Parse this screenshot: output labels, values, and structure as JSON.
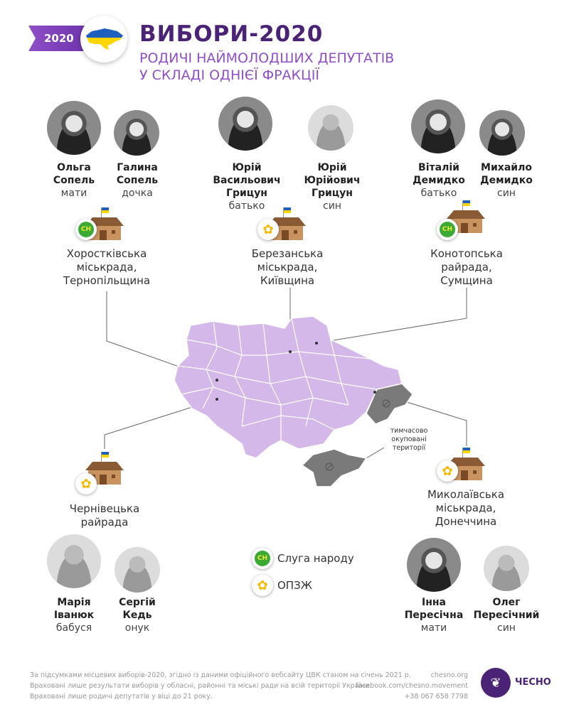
{
  "header": {
    "year_badge": "2020",
    "title": "ВИБОРИ-2020",
    "subtitle_line1": "РОДИЧІ НАЙМОЛОДШИХ ДЕПУТАТІВ",
    "subtitle_line2": "У СКЛАДІ ОДНІЄЇ ФРАКЦІЇ"
  },
  "colors": {
    "brand": "#4a2377",
    "accent": "#8e4fc7",
    "map": "#d4b8ea",
    "occupied": "#7a7a7a",
    "sluha": "#3aaa35",
    "opzzh": "#f5b800"
  },
  "families": [
    {
      "council": [
        "Хоростківська",
        "міськрада,",
        "Тернопільщина"
      ],
      "party": "sluha",
      "members": [
        {
          "name": [
            "Ольга",
            "Сопель"
          ],
          "role": "мати"
        },
        {
          "name": [
            "Галина",
            "Сопель"
          ],
          "role": "дочка"
        }
      ]
    },
    {
      "council": [
        "Березанська",
        "міськрада,",
        "Київщина"
      ],
      "party": "opzzh",
      "members": [
        {
          "name": [
            "Юрій",
            "Васильович",
            "Грицун"
          ],
          "role": "батько"
        },
        {
          "name": [
            "Юрій",
            "Юрійович",
            "Грицун"
          ],
          "role": "син"
        }
      ]
    },
    {
      "council": [
        "Конотопська",
        "райрада,",
        "Сумщина"
      ],
      "party": "sluha",
      "members": [
        {
          "name": [
            "Віталій",
            "Демидко"
          ],
          "role": "батько"
        },
        {
          "name": [
            "Михайло",
            "Демидко"
          ],
          "role": "син"
        }
      ]
    },
    {
      "council": [
        "Чернівецька",
        "райрада"
      ],
      "party": "opzzh",
      "members": [
        {
          "name": [
            "Марія",
            "Іванюк"
          ],
          "role": "бабуся"
        },
        {
          "name": [
            "Сергій",
            "Кедь"
          ],
          "role": "онук"
        }
      ]
    },
    {
      "council": [
        "Миколаївська",
        "міськрада,",
        "Донеччина"
      ],
      "party": "opzzh",
      "members": [
        {
          "name": [
            "Інна",
            "Пересічна"
          ],
          "role": "мати"
        },
        {
          "name": [
            "Олег",
            "Пересічний"
          ],
          "role": "син"
        }
      ]
    }
  ],
  "map": {
    "occupied_label": [
      "тимчасово",
      "окуповані",
      "території"
    ]
  },
  "legend": {
    "sluha_badge": "СН",
    "sluha": "Слуга народу",
    "opzzh": "ОПЗЖ"
  },
  "footer": {
    "notes": [
      "За підсумками місцевих виборів-2020, згідно із даними офіційного вебсайту ЦВК станом на січень 2021 р.",
      "Враховані лише результати виборів у обласні, районні та міські ради на всій території України.",
      "Враховані лише родичі депутатів у віці до 21 року."
    ],
    "contacts": [
      "chesno.org",
      "facebook.com/chesno.movement",
      "+38 067 658 7798"
    ],
    "logo": "ЧЕСНО"
  }
}
